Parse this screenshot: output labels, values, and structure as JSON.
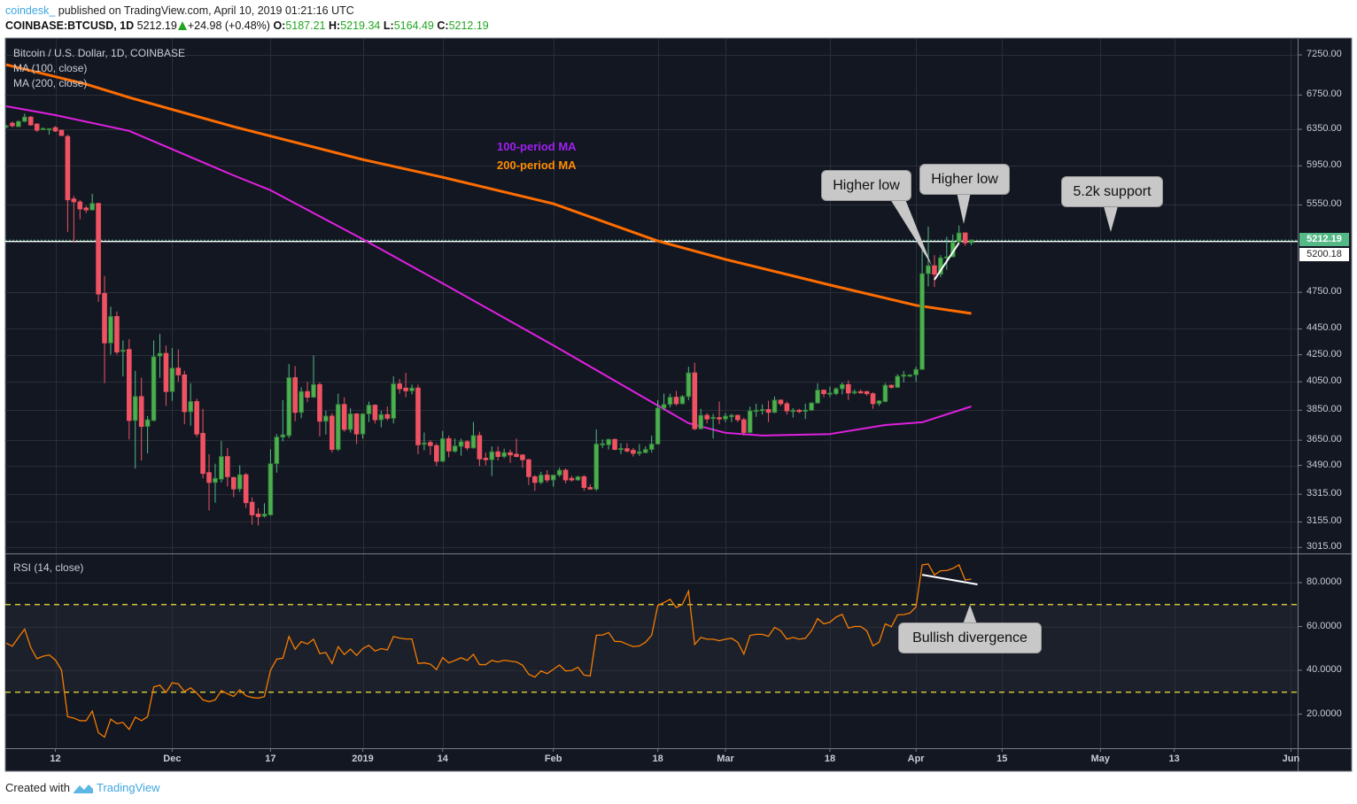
{
  "header": {
    "user": "coindesk_",
    "published": "published on TradingView.com, April 10, 2019 01:21:16 UTC",
    "symbol": "COINBASE:BTCUSD, 1D",
    "last": "5212.19",
    "change": "+24.98 (+0.48%)",
    "o_label": "O:",
    "o": "5187.21",
    "h_label": "H:",
    "h": "5219.34",
    "l_label": "L:",
    "l": "5164.49",
    "c_label": "C:",
    "c": "5212.19"
  },
  "legend": {
    "title": "Bitcoin / U.S. Dollar, 1D, COINBASE",
    "ma100": "MA (100, close)",
    "ma200": "MA (200, close)",
    "rsi": "RSI (14, close)"
  },
  "annotations": {
    "ma100_note": "100-period MA",
    "ma200_note": "200-period MA",
    "higher_low_1": "Higher low",
    "higher_low_2": "Higher low",
    "support": "5.2k support",
    "divergence": "Bullish divergence"
  },
  "price_tags": {
    "last": "5212.19",
    "line": "5200.18"
  },
  "footer": {
    "created_with": "Created with",
    "brand": "TradingView"
  },
  "colors": {
    "background": "#131722",
    "grid": "#2a2e39",
    "up": "#4caf50",
    "down": "#ef5363",
    "ma100": "#e020e0",
    "ma200": "#ff6d00",
    "rsi": "#f57c00",
    "rsi_levels": "#f5e23c",
    "last_price": "#53b987",
    "ma100_note": "#a020f0",
    "ma200_note": "#ff8c00",
    "callout": "#c8c8c8"
  },
  "chart_data": {
    "type": "candlestick",
    "first_date": "2018-11-04",
    "interval": "1D",
    "price_scale": "log",
    "ylim": [
      3015,
      7250
    ],
    "y_ticks": [
      "7250.00",
      "6750.00",
      "6350.00",
      "5950.00",
      "5550.00",
      "4750.00",
      "4450.00",
      "4250.00",
      "4050.00",
      "3850.00",
      "3650.00",
      "3490.00",
      "3315.00",
      "3155.00",
      "3015.00"
    ],
    "x_ticks": [
      {
        "label": "12",
        "date": "2018-11-12"
      },
      {
        "label": "Dec",
        "date": "2018-12-01"
      },
      {
        "label": "17",
        "date": "2018-12-17"
      },
      {
        "label": "2019",
        "date": "2019-01-01"
      },
      {
        "label": "14",
        "date": "2019-01-14"
      },
      {
        "label": "Feb",
        "date": "2019-02-01"
      },
      {
        "label": "18",
        "date": "2019-02-18"
      },
      {
        "label": "Mar",
        "date": "2019-03-01"
      },
      {
        "label": "18",
        "date": "2019-03-18"
      },
      {
        "label": "Apr",
        "date": "2019-04-01"
      },
      {
        "label": "15",
        "date": "2019-04-15"
      },
      {
        "label": "May",
        "date": "2019-05-01"
      },
      {
        "label": "13",
        "date": "2019-05-13"
      },
      {
        "label": "Jun",
        "date": "2019-06-01"
      }
    ],
    "ohlc": [
      [
        6380,
        6400,
        6360,
        6390
      ],
      [
        6420,
        6440,
        6370,
        6390
      ],
      [
        6380,
        6450,
        6375,
        6440
      ],
      [
        6440,
        6530,
        6430,
        6490
      ],
      [
        6490,
        6500,
        6390,
        6400
      ],
      [
        6410,
        6420,
        6320,
        6340
      ],
      [
        6350,
        6370,
        6345,
        6360
      ],
      [
        6350,
        6360,
        6290,
        6358
      ],
      [
        6370,
        6385,
        6320,
        6330
      ],
      [
        6340,
        6345,
        6275,
        6280
      ],
      [
        6270,
        6290,
        5290,
        5600
      ],
      [
        5610,
        5640,
        5190,
        5580
      ],
      [
        5580,
        5600,
        5410,
        5510
      ],
      [
        5520,
        5540,
        5470,
        5500
      ],
      [
        5500,
        5660,
        5495,
        5565
      ],
      [
        5565,
        5570,
        4670,
        4735
      ],
      [
        4740,
        4890,
        4040,
        4340
      ],
      [
        4340,
        4630,
        4250,
        4550
      ],
      [
        4550,
        4590,
        4250,
        4270
      ],
      [
        4275,
        4360,
        4090,
        4285
      ],
      [
        4290,
        4370,
        3655,
        3780
      ],
      [
        3780,
        4130,
        3470,
        3945
      ],
      [
        3945,
        4080,
        3520,
        3740
      ],
      [
        3740,
        3810,
        3565,
        3785
      ],
      [
        3780,
        4360,
        3775,
        4235
      ],
      [
        4240,
        4410,
        4080,
        4260
      ],
      [
        4260,
        4320,
        3880,
        3980
      ],
      [
        3980,
        4300,
        3915,
        4150
      ],
      [
        4150,
        4290,
        4050,
        4100
      ],
      [
        4100,
        4130,
        3755,
        3840
      ],
      [
        3840,
        4040,
        3745,
        3910
      ],
      [
        3910,
        3930,
        3670,
        3690
      ],
      [
        3695,
        3860,
        3410,
        3440
      ],
      [
        3445,
        3560,
        3220,
        3385
      ],
      [
        3385,
        3500,
        3265,
        3410
      ],
      [
        3405,
        3645,
        3385,
        3545
      ],
      [
        3545,
        3600,
        3360,
        3420
      ],
      [
        3415,
        3420,
        3298,
        3346
      ],
      [
        3346,
        3490,
        3328,
        3432
      ],
      [
        3432,
        3443,
        3235,
        3265
      ],
      [
        3268,
        3296,
        3140,
        3195
      ],
      [
        3200,
        3233,
        3135,
        3185
      ],
      [
        3188,
        3262,
        3180,
        3200
      ],
      [
        3195,
        3590,
        3190,
        3500
      ],
      [
        3500,
        3690,
        3445,
        3670
      ],
      [
        3670,
        3920,
        3642,
        3685
      ],
      [
        3680,
        4180,
        3664,
        4080
      ],
      [
        4080,
        4165,
        3775,
        3835
      ],
      [
        3835,
        4010,
        3795,
        3980
      ],
      [
        3980,
        4050,
        3905,
        3940
      ],
      [
        3940,
        4245,
        3935,
        4030
      ],
      [
        4030,
        4045,
        3675,
        3775
      ],
      [
        3775,
        3846,
        3687,
        3810
      ],
      [
        3810,
        3830,
        3570,
        3590
      ],
      [
        3590,
        3965,
        3580,
        3890
      ],
      [
        3890,
        3940,
        3705,
        3720
      ],
      [
        3720,
        3865,
        3700,
        3825
      ],
      [
        3825,
        3830,
        3625,
        3690
      ],
      [
        3690,
        3830,
        3660,
        3825
      ],
      [
        3825,
        3910,
        3770,
        3885
      ],
      [
        3885,
        3890,
        3760,
        3785
      ],
      [
        3785,
        3846,
        3735,
        3820
      ],
      [
        3820,
        3875,
        3780,
        3795
      ],
      [
        3795,
        4090,
        3760,
        4035
      ],
      [
        4035,
        4070,
        3965,
        4000
      ],
      [
        4005,
        4115,
        3940,
        3985
      ],
      [
        3985,
        4030,
        3960,
        4005
      ],
      [
        4005,
        4030,
        3560,
        3620
      ],
      [
        3630,
        3700,
        3585,
        3632
      ],
      [
        3635,
        3650,
        3555,
        3615
      ],
      [
        3615,
        3630,
        3487,
        3515
      ],
      [
        3515,
        3710,
        3510,
        3660
      ],
      [
        3660,
        3680,
        3540,
        3580
      ],
      [
        3578,
        3660,
        3570,
        3612
      ],
      [
        3610,
        3660,
        3550,
        3640
      ],
      [
        3640,
        3650,
        3585,
        3600
      ],
      [
        3600,
        3770,
        3595,
        3680
      ],
      [
        3680,
        3705,
        3485,
        3530
      ],
      [
        3535,
        3570,
        3490,
        3525
      ],
      [
        3525,
        3610,
        3425,
        3575
      ],
      [
        3575,
        3610,
        3520,
        3545
      ],
      [
        3545,
        3595,
        3535,
        3570
      ],
      [
        3570,
        3590,
        3505,
        3555
      ],
      [
        3560,
        3660,
        3540,
        3545
      ],
      [
        3555,
        3560,
        3475,
        3525
      ],
      [
        3525,
        3530,
        3370,
        3420
      ],
      [
        3420,
        3430,
        3335,
        3385
      ],
      [
        3385,
        3450,
        3375,
        3430
      ],
      [
        3430,
        3460,
        3385,
        3400
      ],
      [
        3400,
        3430,
        3360,
        3430
      ],
      [
        3430,
        3475,
        3420,
        3460
      ],
      [
        3460,
        3470,
        3380,
        3400
      ],
      [
        3410,
        3425,
        3390,
        3400
      ],
      [
        3400,
        3425,
        3395,
        3420
      ],
      [
        3420,
        3430,
        3335,
        3355
      ],
      [
        3355,
        3375,
        3345,
        3345
      ],
      [
        3345,
        3720,
        3335,
        3625
      ],
      [
        3625,
        3655,
        3600,
        3627
      ],
      [
        3620,
        3660,
        3590,
        3655
      ],
      [
        3655,
        3660,
        3585,
        3590
      ],
      [
        3595,
        3630,
        3560,
        3597
      ],
      [
        3595,
        3630,
        3570,
        3580
      ],
      [
        3585,
        3600,
        3545,
        3565
      ],
      [
        3565,
        3625,
        3550,
        3575
      ],
      [
        3570,
        3610,
        3565,
        3590
      ],
      [
        3590,
        3680,
        3570,
        3625
      ],
      [
        3625,
        3920,
        3620,
        3865
      ],
      [
        3865,
        3965,
        3850,
        3890
      ],
      [
        3890,
        3965,
        3870,
        3940
      ],
      [
        3940,
        3985,
        3880,
        3895
      ],
      [
        3895,
        3955,
        3890,
        3945
      ],
      [
        3945,
        4160,
        3920,
        4115
      ],
      [
        4115,
        4190,
        3715,
        3725
      ],
      [
        3725,
        3860,
        3720,
        3815
      ],
      [
        3815,
        3830,
        3760,
        3790
      ],
      [
        3800,
        3825,
        3660,
        3802
      ],
      [
        3800,
        3910,
        3755,
        3790
      ],
      [
        3790,
        3830,
        3770,
        3810
      ],
      [
        3805,
        3825,
        3770,
        3815
      ],
      [
        3815,
        3820,
        3770,
        3785
      ],
      [
        3785,
        3800,
        3680,
        3700
      ],
      [
        3700,
        3875,
        3695,
        3845
      ],
      [
        3845,
        3895,
        3805,
        3850
      ],
      [
        3850,
        3890,
        3820,
        3855
      ],
      [
        3855,
        3915,
        3770,
        3835
      ],
      [
        3835,
        3945,
        3830,
        3920
      ],
      [
        3920,
        3925,
        3880,
        3895
      ],
      [
        3895,
        3910,
        3820,
        3845
      ],
      [
        3845,
        3865,
        3800,
        3850
      ],
      [
        3850,
        3860,
        3830,
        3845
      ],
      [
        3850,
        3895,
        3790,
        3851
      ],
      [
        3850,
        3905,
        3845,
        3900
      ],
      [
        3900,
        4040,
        3895,
        3990
      ],
      [
        3990,
        3995,
        3940,
        3965
      ],
      [
        3965,
        4015,
        3940,
        3970
      ],
      [
        3965,
        4010,
        3955,
        4000
      ],
      [
        4000,
        4045,
        3960,
        4030
      ],
      [
        4030,
        4060,
        3920,
        3970
      ],
      [
        3970,
        3995,
        3960,
        3980
      ],
      [
        3980,
        3995,
        3965,
        3975
      ],
      [
        3980,
        3985,
        3950,
        3965
      ],
      [
        3965,
        3975,
        3860,
        3895
      ],
      [
        3895,
        3920,
        3880,
        3915
      ],
      [
        3910,
        4040,
        3905,
        4025
      ],
      [
        4025,
        4030,
        4000,
        4010
      ],
      [
        4010,
        4105,
        4005,
        4090
      ],
      [
        4090,
        4130,
        4045,
        4100
      ],
      [
        4095,
        4105,
        4085,
        4100
      ],
      [
        4100,
        4160,
        4050,
        4140
      ],
      [
        4140,
        5130,
        4140,
        4910
      ],
      [
        4910,
        5340,
        4800,
        4980
      ],
      [
        4980,
        5075,
        4795,
        4905
      ],
      [
        4905,
        5075,
        4880,
        5050
      ],
      [
        5050,
        5245,
        4945,
        5060
      ],
      [
        5060,
        5265,
        5055,
        5195
      ],
      [
        5195,
        5350,
        5190,
        5280
      ],
      [
        5280,
        5285,
        5160,
        5187
      ],
      [
        5187.21,
        5219.34,
        5164.49,
        5212.19
      ]
    ],
    "ma100": [
      {
        "date": "2018-11-04",
        "value": 6616
      },
      {
        "date": "2018-11-12",
        "value": 6513
      },
      {
        "date": "2018-11-24",
        "value": 6332
      },
      {
        "date": "2018-12-11",
        "value": 5849
      },
      {
        "date": "2018-12-17",
        "value": 5697
      },
      {
        "date": "2019-01-01",
        "value": 5221
      },
      {
        "date": "2019-01-14",
        "value": 4826
      },
      {
        "date": "2019-02-01",
        "value": 4322
      },
      {
        "date": "2019-02-18",
        "value": 3882
      },
      {
        "date": "2019-02-23",
        "value": 3762
      },
      {
        "date": "2019-03-01",
        "value": 3698
      },
      {
        "date": "2019-03-07",
        "value": 3680
      },
      {
        "date": "2019-03-18",
        "value": 3690
      },
      {
        "date": "2019-03-27",
        "value": 3750
      },
      {
        "date": "2019-04-02",
        "value": 3768
      },
      {
        "date": "2019-04-10",
        "value": 3876
      }
    ],
    "ma200": [
      {
        "date": "2018-11-04",
        "value": 7125
      },
      {
        "date": "2018-11-17",
        "value": 6882
      },
      {
        "date": "2018-11-24",
        "value": 6721
      },
      {
        "date": "2018-12-11",
        "value": 6380
      },
      {
        "date": "2019-01-01",
        "value": 6017
      },
      {
        "date": "2019-01-14",
        "value": 5830
      },
      {
        "date": "2019-02-01",
        "value": 5562
      },
      {
        "date": "2019-02-18",
        "value": 5204
      },
      {
        "date": "2019-03-01",
        "value": 5037
      },
      {
        "date": "2019-03-18",
        "value": 4812
      },
      {
        "date": "2019-04-01",
        "value": 4641
      },
      {
        "date": "2019-04-10",
        "value": 4574
      }
    ],
    "price_lines": [
      5212.19,
      5200.18
    ],
    "trendline_price": [
      {
        "date": "2019-04-04",
        "value": 4857
      },
      {
        "date": "2019-04-08",
        "value": 5187
      }
    ],
    "rsi": {
      "ylim": [
        0,
        100
      ],
      "y_ticks": [
        "80.0000",
        "60.0000",
        "40.0000",
        "20.0000"
      ],
      "levels": [
        70,
        30
      ],
      "values": [
        52.4,
        51,
        55,
        58.8,
        50.4,
        45.3,
        46.4,
        47,
        44.7,
        40.1,
        18.8,
        18.2,
        17,
        17,
        21.4,
        11.5,
        9.5,
        17.7,
        15.7,
        16.2,
        13,
        18.6,
        17,
        18.8,
        32.4,
        33.2,
        29.9,
        34.3,
        33.8,
        30.3,
        32,
        29.6,
        26.5,
        25.7,
        26.5,
        30.7,
        29.3,
        28.1,
        31.1,
        28.4,
        27.6,
        27.3,
        28,
        40,
        45.1,
        45.5,
        55.4,
        49.6,
        53.1,
        52,
        54.2,
        47.6,
        48.1,
        43.1,
        50.8,
        47.2,
        49.7,
        46.8,
        49.9,
        51.4,
        48.8,
        49.9,
        49.3,
        55.4,
        54.7,
        54.3,
        54.3,
        43.1,
        43.4,
        42.8,
        40.3,
        45.8,
        43.4,
        44.5,
        45.7,
        44.5,
        47.3,
        42.6,
        42.6,
        44.5,
        43.8,
        44.6,
        44.2,
        43.8,
        42.3,
        38.2,
        36.9,
        39.7,
        38.5,
        40.4,
        42.4,
        39.7,
        39.9,
        41.4,
        37.8,
        37.4,
        56,
        56.1,
        57.2,
        53.2,
        53.1,
        51.9,
        50.8,
        51.1,
        52.8,
        56,
        69.6,
        70.9,
        72.4,
        68.6,
        70.1,
        76.1,
        51.8,
        55,
        54.2,
        54.2,
        53.5,
        54.2,
        54.6,
        52.8,
        47.4,
        55.9,
        56.4,
        56.4,
        55.5,
        59.6,
        58,
        54.2,
        55,
        54.2,
        54.6,
        58,
        63.6,
        61.2,
        61.9,
        64.3,
        65.5,
        59.3,
        60,
        60,
        58,
        51.2,
        52.8,
        61.2,
        59.9,
        65.3,
        65.4,
        66.1,
        68.9,
        88.1,
        88.5,
        83.5,
        85.4,
        85.5,
        86.5,
        88.1,
        81.2,
        81.6
      ],
      "trendline": [
        {
          "date": "2019-04-02",
          "value": 83.6
        },
        {
          "date": "2019-04-11",
          "value": 79.2
        }
      ]
    }
  }
}
